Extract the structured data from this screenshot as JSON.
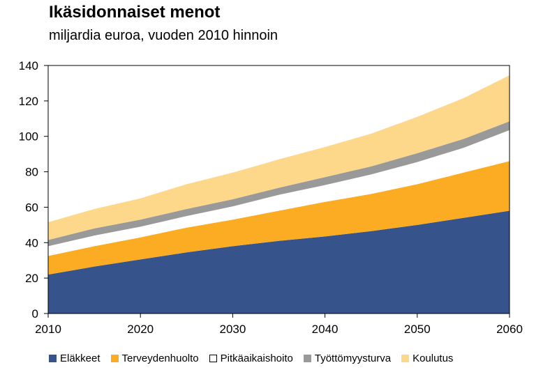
{
  "header": {
    "title": "Ikäsidonnaiset menot",
    "subtitle": "miljardia euroa, vuoden 2010 hinnoin"
  },
  "chart_data": {
    "type": "area",
    "stacked": true,
    "title": "Ikäsidonnaiset menot",
    "subtitle": "miljardia euroa, vuoden 2010 hinnoin",
    "x": [
      2010,
      2015,
      2020,
      2025,
      2030,
      2035,
      2040,
      2045,
      2050,
      2055,
      2060
    ],
    "xlim": [
      2010,
      2060
    ],
    "xticks": [
      "2010",
      "2020",
      "2030",
      "2040",
      "2050",
      "2060"
    ],
    "ylim": [
      0,
      140
    ],
    "yticks": [
      "0",
      "20",
      "40",
      "60",
      "80",
      "100",
      "120",
      "140"
    ],
    "grid": false,
    "legend_position": "bottom",
    "series": [
      {
        "name": "Eläkkeet",
        "color": "#36548B",
        "values": [
          22,
          26.5,
          30.5,
          34.5,
          38,
          41,
          43.5,
          46.5,
          50,
          54,
          58
        ]
      },
      {
        "name": "Terveydenhuolto",
        "color": "#FBAC22",
        "values": [
          10.5,
          11.5,
          12.5,
          14,
          15,
          17,
          19.5,
          21,
          23,
          25.5,
          28
        ]
      },
      {
        "name": "Pitkäaikaishoito",
        "color": "#FFFFFF",
        "values": [
          5.5,
          6,
          6,
          6.5,
          7.5,
          9,
          9.5,
          11,
          12.5,
          14,
          17.5
        ]
      },
      {
        "name": "Työttömyysturva",
        "color": "#999999",
        "values": [
          3.5,
          4,
          4,
          4,
          4,
          4,
          4.5,
          4.5,
          5,
          5,
          5
        ]
      },
      {
        "name": "Koulutus",
        "color": "#FDD78A",
        "values": [
          10,
          11,
          12,
          14,
          15,
          16,
          17,
          18.5,
          20.5,
          23,
          26
        ]
      }
    ]
  }
}
